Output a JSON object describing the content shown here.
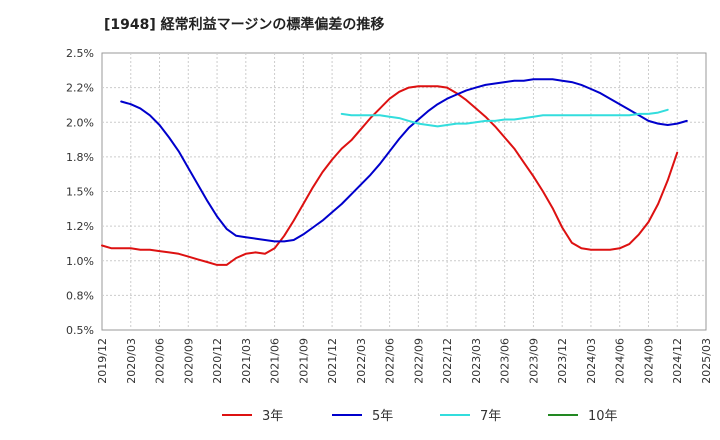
{
  "chart_data": {
    "type": "line",
    "title": "[1948]  経常利益マージンの標準偏差の推移",
    "xlabel": "",
    "ylabel": "",
    "ylim": [
      0.5,
      2.5
    ],
    "y_ticks": [
      "0.5%",
      "0.8%",
      "1.0%",
      "1.2%",
      "1.5%",
      "1.8%",
      "2.0%",
      "2.2%",
      "2.5%"
    ],
    "x_ticks": [
      "2019/12",
      "2020/03",
      "2020/06",
      "2020/09",
      "2020/12",
      "2021/03",
      "2021/06",
      "2021/09",
      "2021/12",
      "2022/03",
      "2022/06",
      "2022/09",
      "2022/12",
      "2023/03",
      "2023/06",
      "2023/09",
      "2023/12",
      "2024/03",
      "2024/06",
      "2024/09",
      "2024/12",
      "2025/03"
    ],
    "grid": true,
    "legend_position": "bottom",
    "series": [
      {
        "name": "3年",
        "color": "#dd1111",
        "start": "2019/12",
        "values": [
          1.11,
          1.09,
          1.09,
          1.09,
          1.08,
          1.08,
          1.07,
          1.06,
          1.05,
          1.03,
          1.01,
          0.99,
          0.97,
          0.97,
          1.02,
          1.05,
          1.06,
          1.05,
          1.09,
          1.18,
          1.29,
          1.41,
          1.53,
          1.64,
          1.73,
          1.81,
          1.87,
          1.95,
          2.03,
          2.1,
          2.17,
          2.22,
          2.25,
          2.26,
          2.26,
          2.26,
          2.25,
          2.21,
          2.16,
          2.1,
          2.04,
          1.97,
          1.89,
          1.81,
          1.71,
          1.61,
          1.5,
          1.38,
          1.24,
          1.13,
          1.09,
          1.08,
          1.08,
          1.08,
          1.09,
          1.12,
          1.19,
          1.28,
          1.41,
          1.58,
          1.78
        ]
      },
      {
        "name": "5年",
        "color": "#0000cc",
        "start": "2020/02",
        "values": [
          2.15,
          2.13,
          2.1,
          2.05,
          1.98,
          1.89,
          1.79,
          1.67,
          1.55,
          1.43,
          1.32,
          1.23,
          1.18,
          1.17,
          1.16,
          1.15,
          1.14,
          1.14,
          1.15,
          1.19,
          1.24,
          1.29,
          1.35,
          1.41,
          1.48,
          1.55,
          1.62,
          1.7,
          1.79,
          1.88,
          1.96,
          2.02,
          2.08,
          2.13,
          2.17,
          2.2,
          2.23,
          2.25,
          2.27,
          2.28,
          2.29,
          2.3,
          2.3,
          2.31,
          2.31,
          2.31,
          2.3,
          2.29,
          2.27,
          2.24,
          2.21,
          2.17,
          2.13,
          2.09,
          2.05,
          2.01,
          1.99,
          1.98,
          1.99,
          2.01
        ]
      },
      {
        "name": "7年",
        "color": "#33dddd",
        "start": "2022/01",
        "values": [
          2.06,
          2.05,
          2.05,
          2.05,
          2.05,
          2.04,
          2.03,
          2.01,
          1.99,
          1.98,
          1.97,
          1.98,
          1.99,
          1.99,
          2.0,
          2.01,
          2.01,
          2.02,
          2.02,
          2.03,
          2.04,
          2.05,
          2.05,
          2.05,
          2.05,
          2.05,
          2.05,
          2.05,
          2.05,
          2.05,
          2.05,
          2.06,
          2.06,
          2.07,
          2.09
        ]
      },
      {
        "name": "10年",
        "color": "#228822",
        "start": "2024/12",
        "values": []
      }
    ]
  }
}
